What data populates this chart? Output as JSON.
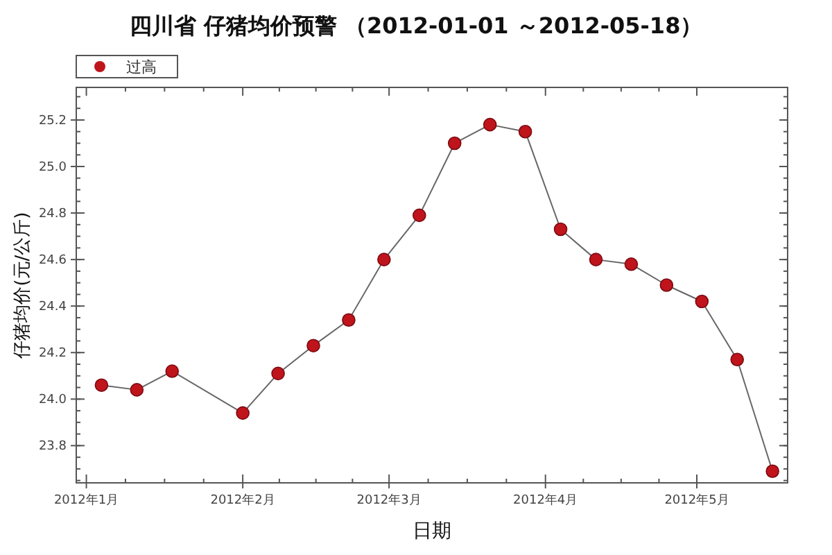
{
  "chart_data": {
    "type": "line",
    "title": "四川省 仔猪均价预警 （2012-01-01 ～2012-05-18）",
    "xlabel": "日期",
    "ylabel": "仔猪均价(元/公斤)",
    "x": [
      "2012-01-04",
      "2012-01-11",
      "2012-01-18",
      "2012-02-01",
      "2012-02-08",
      "2012-02-15",
      "2012-02-22",
      "2012-02-29",
      "2012-03-07",
      "2012-03-14",
      "2012-03-21",
      "2012-03-28",
      "2012-04-04",
      "2012-04-11",
      "2012-04-18",
      "2012-04-25",
      "2012-05-02",
      "2012-05-09",
      "2012-05-16"
    ],
    "series": [
      {
        "name": "过高",
        "color": "#c0141c",
        "values": [
          24.06,
          24.04,
          24.12,
          23.94,
          24.11,
          24.23,
          24.34,
          24.6,
          24.79,
          25.1,
          25.18,
          25.15,
          24.73,
          24.6,
          24.58,
          24.49,
          24.42,
          24.17,
          23.69
        ]
      }
    ],
    "xlim": [
      "2011-12-30",
      "2012-05-19"
    ],
    "xticks": [
      {
        "value": "2012-01-01",
        "label": "2012年1月"
      },
      {
        "value": "2012-02-01",
        "label": "2012年2月"
      },
      {
        "value": "2012-03-01",
        "label": "2012年3月"
      },
      {
        "value": "2012-04-01",
        "label": "2012年4月"
      },
      {
        "value": "2012-05-01",
        "label": "2012年5月"
      }
    ],
    "ylim": [
      23.64,
      25.34
    ],
    "yticks": [
      23.8,
      {
        "value": 24.0,
        "label": "24.0"
      },
      24.2,
      24.4,
      24.6,
      24.8,
      {
        "value": 25.0,
        "label": "25.0"
      },
      25.2
    ],
    "marker": "circle",
    "line_style": "solid",
    "grid": false,
    "legend": "top left"
  }
}
